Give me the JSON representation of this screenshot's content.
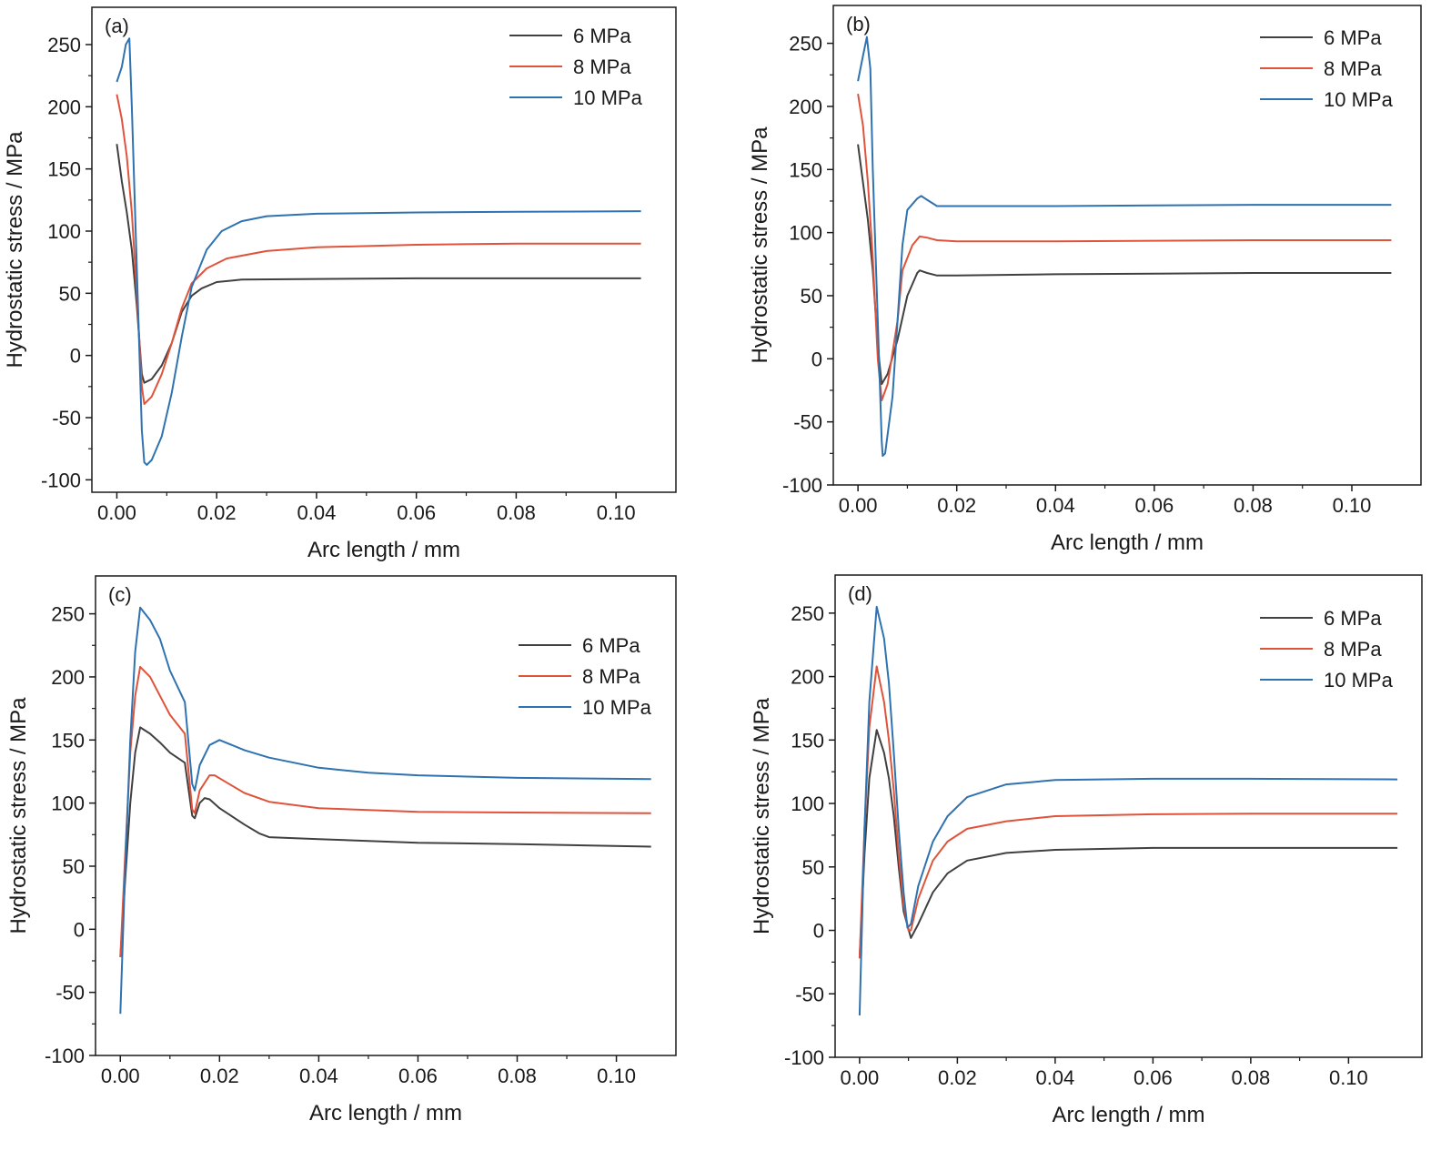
{
  "colors": {
    "6MPa": "#404040",
    "8MPa": "#e0533b",
    "10MPa": "#2f72b0",
    "axis": "#1a1a1a"
  },
  "chart_data": [
    {
      "type": "line",
      "panel_label": "(a)",
      "xlabel": "Arc length / mm",
      "ylabel": "Hydrostatic stress / MPa",
      "xlim": [
        -0.005,
        0.112
      ],
      "ylim": [
        -110,
        280
      ],
      "xticks": [
        "0.00",
        "0.02",
        "0.04",
        "0.06",
        "0.08",
        "0.10"
      ],
      "yticks": [
        "-100",
        "-50",
        "0",
        "50",
        "100",
        "150",
        "200",
        "250"
      ],
      "legend_position": "top-right",
      "series": [
        {
          "name": "6 MPa",
          "color": "#404040",
          "points": [
            [
              0,
              170
            ],
            [
              0.001,
              140
            ],
            [
              0.002,
              115
            ],
            [
              0.003,
              85
            ],
            [
              0.004,
              40
            ],
            [
              0.005,
              -15
            ],
            [
              0.0055,
              -22
            ],
            [
              0.007,
              -19
            ],
            [
              0.009,
              -8
            ],
            [
              0.011,
              10
            ],
            [
              0.013,
              35
            ],
            [
              0.015,
              48
            ],
            [
              0.017,
              54
            ],
            [
              0.02,
              59
            ],
            [
              0.025,
              61
            ],
            [
              0.04,
              61.5
            ],
            [
              0.06,
              62
            ],
            [
              0.08,
              62
            ],
            [
              0.105,
              62
            ]
          ]
        },
        {
          "name": "8 MPa",
          "color": "#e0533b",
          "points": [
            [
              0,
              210
            ],
            [
              0.001,
              190
            ],
            [
              0.002,
              160
            ],
            [
              0.003,
              115
            ],
            [
              0.004,
              50
            ],
            [
              0.005,
              -25
            ],
            [
              0.0055,
              -39
            ],
            [
              0.007,
              -33
            ],
            [
              0.009,
              -15
            ],
            [
              0.011,
              10
            ],
            [
              0.013,
              38
            ],
            [
              0.015,
              58
            ],
            [
              0.018,
              70
            ],
            [
              0.022,
              78
            ],
            [
              0.03,
              84
            ],
            [
              0.04,
              87
            ],
            [
              0.06,
              89
            ],
            [
              0.08,
              90
            ],
            [
              0.105,
              90
            ]
          ]
        },
        {
          "name": "10 MPa",
          "color": "#2f72b0",
          "points": [
            [
              0,
              220
            ],
            [
              0.001,
              232
            ],
            [
              0.0018,
              250
            ],
            [
              0.0025,
              255
            ],
            [
              0.003,
              200
            ],
            [
              0.004,
              70
            ],
            [
              0.005,
              -60
            ],
            [
              0.0055,
              -86
            ],
            [
              0.006,
              -88
            ],
            [
              0.007,
              -84
            ],
            [
              0.009,
              -65
            ],
            [
              0.011,
              -30
            ],
            [
              0.013,
              15
            ],
            [
              0.015,
              55
            ],
            [
              0.018,
              85
            ],
            [
              0.021,
              100
            ],
            [
              0.025,
              108
            ],
            [
              0.03,
              112
            ],
            [
              0.04,
              114
            ],
            [
              0.06,
              115
            ],
            [
              0.08,
              115.5
            ],
            [
              0.105,
              116
            ]
          ]
        }
      ]
    },
    {
      "type": "line",
      "panel_label": "(b)",
      "xlabel": "Arc length / mm",
      "ylabel": "Hydrostatic stress / MPa",
      "xlim": [
        -0.005,
        0.114
      ],
      "ylim": [
        -100,
        280
      ],
      "xticks": [
        "0.00",
        "0.02",
        "0.04",
        "0.06",
        "0.08",
        "0.10"
      ],
      "yticks": [
        "-100",
        "-50",
        "0",
        "50",
        "100",
        "150",
        "200",
        "250"
      ],
      "legend_position": "top-right",
      "series": [
        {
          "name": "6 MPa",
          "color": "#404040",
          "points": [
            [
              0,
              170
            ],
            [
              0.001,
              140
            ],
            [
              0.002,
              110
            ],
            [
              0.003,
              70
            ],
            [
              0.004,
              10
            ],
            [
              0.0048,
              -20
            ],
            [
              0.006,
              -12
            ],
            [
              0.008,
              15
            ],
            [
              0.01,
              50
            ],
            [
              0.012,
              68
            ],
            [
              0.0125,
              70
            ],
            [
              0.014,
              68
            ],
            [
              0.016,
              66
            ],
            [
              0.02,
              66
            ],
            [
              0.04,
              67
            ],
            [
              0.06,
              67.5
            ],
            [
              0.08,
              68
            ],
            [
              0.108,
              68
            ]
          ]
        },
        {
          "name": "8 MPa",
          "color": "#e0533b",
          "points": [
            [
              0,
              210
            ],
            [
              0.001,
              185
            ],
            [
              0.002,
              140
            ],
            [
              0.003,
              80
            ],
            [
              0.004,
              0
            ],
            [
              0.0048,
              -33
            ],
            [
              0.006,
              -20
            ],
            [
              0.008,
              30
            ],
            [
              0.009,
              70
            ],
            [
              0.011,
              90
            ],
            [
              0.0125,
              97
            ],
            [
              0.014,
              96
            ],
            [
              0.016,
              94
            ],
            [
              0.02,
              93
            ],
            [
              0.04,
              93
            ],
            [
              0.06,
              93.5
            ],
            [
              0.08,
              94
            ],
            [
              0.108,
              94
            ]
          ]
        },
        {
          "name": "10 MPa",
          "color": "#2f72b0",
          "points": [
            [
              0,
              220
            ],
            [
              0.001,
              240
            ],
            [
              0.0018,
              255
            ],
            [
              0.0025,
              230
            ],
            [
              0.003,
              150
            ],
            [
              0.004,
              30
            ],
            [
              0.0048,
              -65
            ],
            [
              0.005,
              -77
            ],
            [
              0.0055,
              -75
            ],
            [
              0.007,
              -30
            ],
            [
              0.008,
              30
            ],
            [
              0.009,
              90
            ],
            [
              0.01,
              118
            ],
            [
              0.012,
              127
            ],
            [
              0.0128,
              129
            ],
            [
              0.014,
              126
            ],
            [
              0.016,
              121
            ],
            [
              0.02,
              121
            ],
            [
              0.04,
              121
            ],
            [
              0.06,
              121.5
            ],
            [
              0.08,
              122
            ],
            [
              0.108,
              122
            ]
          ]
        }
      ]
    },
    {
      "type": "line",
      "panel_label": "(c)",
      "xlabel": "Arc length / mm",
      "ylabel": "Hydrostatic stress / MPa",
      "xlim": [
        -0.005,
        0.112
      ],
      "ylim": [
        -100,
        280
      ],
      "xticks": [
        "0.00",
        "0.02",
        "0.04",
        "0.06",
        "0.08",
        "0.10"
      ],
      "yticks": [
        "-100",
        "-50",
        "0",
        "50",
        "100",
        "150",
        "200",
        "250"
      ],
      "legend_position": "right",
      "series": [
        {
          "name": "6 MPa",
          "color": "#404040",
          "points": [
            [
              0,
              -22
            ],
            [
              0.001,
              40
            ],
            [
              0.002,
              100
            ],
            [
              0.003,
              140
            ],
            [
              0.004,
              160
            ],
            [
              0.006,
              155
            ],
            [
              0.008,
              148
            ],
            [
              0.01,
              140
            ],
            [
              0.013,
              132
            ],
            [
              0.0145,
              90
            ],
            [
              0.015,
              88
            ],
            [
              0.016,
              100
            ],
            [
              0.017,
              104
            ],
            [
              0.018,
              103
            ],
            [
              0.02,
              96
            ],
            [
              0.025,
              83
            ],
            [
              0.028,
              76
            ],
            [
              0.03,
              73
            ],
            [
              0.04,
              71.5
            ],
            [
              0.06,
              68.5
            ],
            [
              0.08,
              67.5
            ],
            [
              0.107,
              65.5
            ]
          ]
        },
        {
          "name": "8 MPa",
          "color": "#e0533b",
          "points": [
            [
              0,
              -22
            ],
            [
              0.001,
              60
            ],
            [
              0.002,
              140
            ],
            [
              0.003,
              185
            ],
            [
              0.004,
              208
            ],
            [
              0.006,
              200
            ],
            [
              0.008,
              185
            ],
            [
              0.01,
              170
            ],
            [
              0.013,
              155
            ],
            [
              0.0145,
              95
            ],
            [
              0.015,
              92
            ],
            [
              0.016,
              110
            ],
            [
              0.018,
              122
            ],
            [
              0.019,
              122
            ],
            [
              0.022,
              115
            ],
            [
              0.025,
              108
            ],
            [
              0.03,
              101
            ],
            [
              0.04,
              96
            ],
            [
              0.06,
              93
            ],
            [
              0.08,
              92.5
            ],
            [
              0.107,
              92
            ]
          ]
        },
        {
          "name": "10 MPa",
          "color": "#2f72b0",
          "points": [
            [
              0,
              -67
            ],
            [
              0.001,
              50
            ],
            [
              0.002,
              150
            ],
            [
              0.003,
              220
            ],
            [
              0.004,
              255
            ],
            [
              0.006,
              245
            ],
            [
              0.008,
              230
            ],
            [
              0.01,
              205
            ],
            [
              0.013,
              180
            ],
            [
              0.0145,
              115
            ],
            [
              0.015,
              110
            ],
            [
              0.016,
              130
            ],
            [
              0.018,
              146
            ],
            [
              0.02,
              150
            ],
            [
              0.025,
              142
            ],
            [
              0.03,
              136
            ],
            [
              0.04,
              128
            ],
            [
              0.05,
              124
            ],
            [
              0.06,
              122
            ],
            [
              0.08,
              120
            ],
            [
              0.107,
              119
            ]
          ]
        }
      ]
    },
    {
      "type": "line",
      "panel_label": "(d)",
      "xlabel": "Arc length / mm",
      "ylabel": "Hydrostatic stress / MPa",
      "xlim": [
        -0.005,
        0.115
      ],
      "ylim": [
        -100,
        280
      ],
      "xticks": [
        "0.00",
        "0.02",
        "0.04",
        "0.06",
        "0.08",
        "0.10"
      ],
      "yticks": [
        "-100",
        "-50",
        "0",
        "50",
        "100",
        "150",
        "200",
        "250"
      ],
      "legend_position": "top-right",
      "series": [
        {
          "name": "6 MPa",
          "color": "#404040",
          "points": [
            [
              0,
              -22
            ],
            [
              0.001,
              60
            ],
            [
              0.002,
              120
            ],
            [
              0.0035,
              158
            ],
            [
              0.005,
              140
            ],
            [
              0.006,
              120
            ],
            [
              0.007,
              90
            ],
            [
              0.008,
              50
            ],
            [
              0.009,
              15
            ],
            [
              0.0105,
              -6
            ],
            [
              0.012,
              5
            ],
            [
              0.015,
              30
            ],
            [
              0.018,
              45
            ],
            [
              0.022,
              55
            ],
            [
              0.03,
              61
            ],
            [
              0.04,
              63.5
            ],
            [
              0.06,
              65
            ],
            [
              0.08,
              65
            ],
            [
              0.11,
              65
            ]
          ]
        },
        {
          "name": "8 MPa",
          "color": "#e0533b",
          "points": [
            [
              0,
              -22
            ],
            [
              0.001,
              80
            ],
            [
              0.002,
              160
            ],
            [
              0.0035,
              208
            ],
            [
              0.005,
              180
            ],
            [
              0.006,
              150
            ],
            [
              0.007,
              110
            ],
            [
              0.008,
              60
            ],
            [
              0.009,
              20
            ],
            [
              0.01,
              0
            ],
            [
              0.0105,
              0
            ],
            [
              0.012,
              25
            ],
            [
              0.015,
              55
            ],
            [
              0.018,
              70
            ],
            [
              0.022,
              80
            ],
            [
              0.03,
              86
            ],
            [
              0.04,
              90
            ],
            [
              0.06,
              91.5
            ],
            [
              0.08,
              92
            ],
            [
              0.11,
              92
            ]
          ]
        },
        {
          "name": "10 MPa",
          "color": "#2f72b0",
          "points": [
            [
              0,
              -67
            ],
            [
              0.001,
              80
            ],
            [
              0.002,
              180
            ],
            [
              0.0035,
              255
            ],
            [
              0.005,
              230
            ],
            [
              0.006,
              195
            ],
            [
              0.007,
              140
            ],
            [
              0.008,
              80
            ],
            [
              0.009,
              30
            ],
            [
              0.0098,
              2
            ],
            [
              0.0105,
              5
            ],
            [
              0.012,
              35
            ],
            [
              0.015,
              70
            ],
            [
              0.018,
              90
            ],
            [
              0.022,
              105
            ],
            [
              0.03,
              115
            ],
            [
              0.04,
              118.5
            ],
            [
              0.06,
              119.5
            ],
            [
              0.08,
              119.5
            ],
            [
              0.11,
              119
            ]
          ]
        }
      ]
    }
  ]
}
